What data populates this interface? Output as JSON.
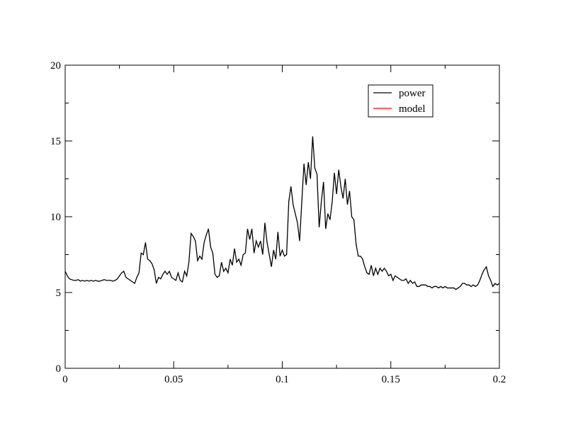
{
  "chart_data": {
    "type": "line",
    "xlim": [
      0,
      0.2
    ],
    "ylim": [
      0,
      20
    ],
    "xticks": [
      0,
      0.05,
      0.1,
      0.15,
      0.2
    ],
    "yticks": [
      0,
      5,
      10,
      15,
      20
    ],
    "xminorticks": [
      0.025,
      0.075,
      0.125,
      0.175
    ],
    "yminorticks": [
      2.5,
      7.5,
      12.5,
      17.5
    ],
    "legend": "top-right",
    "series": [
      {
        "name": "power",
        "color": "#000000",
        "x": [
          0,
          0.001,
          0.002,
          0.003,
          0.004,
          0.005,
          0.006,
          0.007,
          0.008,
          0.009,
          0.01,
          0.011,
          0.012,
          0.013,
          0.014,
          0.015,
          0.016,
          0.017,
          0.018,
          0.019,
          0.02,
          0.021,
          0.022,
          0.023,
          0.024,
          0.025,
          0.026,
          0.027,
          0.028,
          0.029,
          0.03,
          0.031,
          0.032,
          0.033,
          0.034,
          0.035,
          0.036,
          0.037,
          0.038,
          0.039,
          0.04,
          0.041,
          0.042,
          0.043,
          0.044,
          0.045,
          0.046,
          0.047,
          0.048,
          0.049,
          0.05,
          0.051,
          0.052,
          0.053,
          0.054,
          0.055,
          0.056,
          0.057,
          0.058,
          0.059,
          0.06,
          0.061,
          0.062,
          0.063,
          0.064,
          0.065,
          0.066,
          0.067,
          0.068,
          0.069,
          0.07,
          0.071,
          0.072,
          0.073,
          0.074,
          0.075,
          0.076,
          0.077,
          0.078,
          0.079,
          0.08,
          0.081,
          0.082,
          0.083,
          0.084,
          0.085,
          0.086,
          0.087,
          0.088,
          0.089,
          0.09,
          0.091,
          0.092,
          0.093,
          0.094,
          0.095,
          0.096,
          0.097,
          0.098,
          0.099,
          0.1,
          0.101,
          0.102,
          0.103,
          0.104,
          0.105,
          0.106,
          0.107,
          0.108,
          0.109,
          0.11,
          0.111,
          0.112,
          0.113,
          0.114,
          0.115,
          0.116,
          0.117,
          0.118,
          0.119,
          0.12,
          0.121,
          0.122,
          0.123,
          0.124,
          0.125,
          0.126,
          0.127,
          0.128,
          0.129,
          0.13,
          0.131,
          0.132,
          0.133,
          0.134,
          0.135,
          0.136,
          0.137,
          0.138,
          0.139,
          0.14,
          0.141,
          0.142,
          0.143,
          0.144,
          0.145,
          0.146,
          0.147,
          0.148,
          0.149,
          0.15,
          0.151,
          0.152,
          0.153,
          0.154,
          0.155,
          0.156,
          0.157,
          0.158,
          0.159,
          0.16,
          0.161,
          0.162,
          0.163,
          0.164,
          0.165,
          0.166,
          0.167,
          0.168,
          0.169,
          0.17,
          0.171,
          0.172,
          0.173,
          0.174,
          0.175,
          0.176,
          0.177,
          0.178,
          0.179,
          0.18,
          0.181,
          0.182,
          0.183,
          0.184,
          0.185,
          0.186,
          0.187,
          0.188,
          0.189,
          0.19,
          0.191,
          0.192,
          0.193,
          0.194,
          0.195,
          0.196,
          0.197,
          0.198,
          0.199,
          0.2
        ],
        "values": [
          6.4,
          6.1,
          5.9,
          5.85,
          5.8,
          5.8,
          5.85,
          5.75,
          5.8,
          5.75,
          5.8,
          5.75,
          5.8,
          5.75,
          5.8,
          5.75,
          5.75,
          5.8,
          5.85,
          5.8,
          5.8,
          5.8,
          5.75,
          5.8,
          5.9,
          6.1,
          6.3,
          6.4,
          6.0,
          5.9,
          5.8,
          5.7,
          5.6,
          6.0,
          6.3,
          7.6,
          7.5,
          8.3,
          7.2,
          7.1,
          6.9,
          6.5,
          5.6,
          6.0,
          5.9,
          6.2,
          6.4,
          6.2,
          6.4,
          6.0,
          5.9,
          5.8,
          6.3,
          5.8,
          5.7,
          6.4,
          6.1,
          7.0,
          8.9,
          8.7,
          8.4,
          7.1,
          7.4,
          7.2,
          8.3,
          8.8,
          9.2,
          8.0,
          7.6,
          6.2,
          6.0,
          6.1,
          7.0,
          6.4,
          6.6,
          6.3,
          7.2,
          6.8,
          7.9,
          7.0,
          7.2,
          6.8,
          7.5,
          7.6,
          9.2,
          8.5,
          9.2,
          7.6,
          8.4,
          8.0,
          8.4,
          7.5,
          9.6,
          8.3,
          7.5,
          6.7,
          7.8,
          7.2,
          9.0,
          7.4,
          7.8,
          7.4,
          7.5,
          11.0,
          12.0,
          10.8,
          10.2,
          9.6,
          8.4,
          11.0,
          13.5,
          12.1,
          13.6,
          12.5,
          15.3,
          13.2,
          12.8,
          9.3,
          11.0,
          12.3,
          9.2,
          10.2,
          9.8,
          11.0,
          12.9,
          11.5,
          13.1,
          12.0,
          11.2,
          12.5,
          10.8,
          11.7,
          10.0,
          9.8,
          8.2,
          7.4,
          7.4,
          7.2,
          6.7,
          6.3,
          6.2,
          6.8,
          6.1,
          6.6,
          6.2,
          6.6,
          6.4,
          6.6,
          6.4,
          6.1,
          6.2,
          5.8,
          6.1,
          6.0,
          5.9,
          5.8,
          5.8,
          5.9,
          5.6,
          5.8,
          5.6,
          5.7,
          5.4,
          5.4,
          5.5,
          5.5,
          5.5,
          5.4,
          5.4,
          5.3,
          5.4,
          5.4,
          5.3,
          5.4,
          5.3,
          5.4,
          5.3,
          5.3,
          5.3,
          5.3,
          5.2,
          5.3,
          5.4,
          5.6,
          5.6,
          5.5,
          5.5,
          5.4,
          5.5,
          5.4,
          5.5,
          5.8,
          6.2,
          6.5,
          6.7,
          6.1,
          5.8,
          5.4,
          5.6,
          5.5,
          5.6
        ]
      },
      {
        "name": "model",
        "color": "#ff0000",
        "x": [],
        "values": []
      }
    ]
  }
}
